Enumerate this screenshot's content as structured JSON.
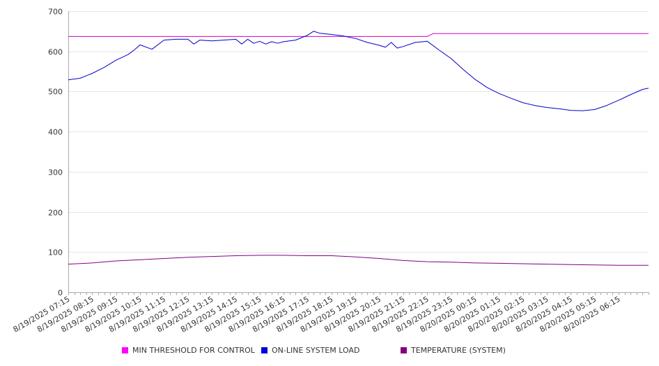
{
  "chart_data": {
    "type": "line",
    "title": "",
    "xlabel": "",
    "ylabel": "",
    "ylim": [
      0,
      700
    ],
    "yticks": [
      0,
      100,
      200,
      300,
      400,
      500,
      600,
      700
    ],
    "grid": true,
    "legend_position": "bottom",
    "x_start": "8/19/2025 07:15",
    "x_end": "8/20/2025 07:30",
    "categories": [
      "8/19/2025 07:15",
      "8/19/2025 08:15",
      "8/19/2025 09:15",
      "8/19/2025 10:15",
      "8/19/2025 11:15",
      "8/19/2025 12:15",
      "8/19/2025 13:15",
      "8/19/2025 14:15",
      "8/19/2025 15:15",
      "8/19/2025 16:15",
      "8/19/2025 17:15",
      "8/19/2025 18:15",
      "8/19/2025 19:15",
      "8/19/2025 20:15",
      "8/19/2025 21:15",
      "8/19/2025 22:15",
      "8/19/2025 23:15",
      "8/20/2025 00:15",
      "8/20/2025 01:15",
      "8/20/2025 02:15",
      "8/20/2025 03:15",
      "8/20/2025 04:15",
      "8/20/2025 05:15",
      "8/20/2025 06:15"
    ],
    "series": [
      {
        "name": "MIN THRESHOLD FOR CONTROL",
        "color": "#cc00cc",
        "x": [
          "8/19/2025 07:15",
          "8/19/2025 22:15",
          "8/19/2025 22:30",
          "8/20/2025 07:30"
        ],
        "values": [
          637,
          637,
          644,
          644
        ]
      },
      {
        "name": "ON-LINE SYSTEM LOAD",
        "color": "#0000cc",
        "x": [
          "8/19/2025 07:15",
          "8/19/2025 07:45",
          "8/19/2025 08:15",
          "8/19/2025 08:45",
          "8/19/2025 09:15",
          "8/19/2025 09:45",
          "8/19/2025 10:00",
          "8/19/2025 10:15",
          "8/19/2025 10:45",
          "8/19/2025 11:15",
          "8/19/2025 11:45",
          "8/19/2025 12:15",
          "8/19/2025 12:30",
          "8/19/2025 12:45",
          "8/19/2025 13:15",
          "8/19/2025 13:45",
          "8/19/2025 14:15",
          "8/19/2025 14:30",
          "8/19/2025 14:45",
          "8/19/2025 15:00",
          "8/19/2025 15:15",
          "8/19/2025 15:30",
          "8/19/2025 15:45",
          "8/19/2025 16:00",
          "8/19/2025 16:15",
          "8/19/2025 16:45",
          "8/19/2025 17:15",
          "8/19/2025 17:30",
          "8/19/2025 17:45",
          "8/19/2025 18:15",
          "8/19/2025 18:45",
          "8/19/2025 19:15",
          "8/19/2025 19:45",
          "8/19/2025 20:15",
          "8/19/2025 20:30",
          "8/19/2025 20:45",
          "8/19/2025 21:00",
          "8/19/2025 21:15",
          "8/19/2025 21:45",
          "8/19/2025 22:15",
          "8/19/2025 22:45",
          "8/19/2025 23:15",
          "8/19/2025 23:45",
          "8/20/2025 00:15",
          "8/20/2025 00:45",
          "8/20/2025 01:15",
          "8/20/2025 01:45",
          "8/20/2025 02:15",
          "8/20/2025 02:45",
          "8/20/2025 03:15",
          "8/20/2025 03:45",
          "8/20/2025 04:15",
          "8/20/2025 04:45",
          "8/20/2025 05:15",
          "8/20/2025 05:45",
          "8/20/2025 06:15",
          "8/20/2025 06:45",
          "8/20/2025 07:15",
          "8/20/2025 07:30"
        ],
        "values": [
          529,
          533,
          545,
          560,
          578,
          592,
          603,
          616,
          605,
          628,
          630,
          630,
          618,
          628,
          626,
          628,
          630,
          618,
          630,
          620,
          625,
          618,
          624,
          620,
          624,
          628,
          640,
          650,
          645,
          642,
          638,
          632,
          622,
          615,
          610,
          622,
          608,
          612,
          622,
          625,
          603,
          582,
          555,
          530,
          510,
          495,
          483,
          472,
          465,
          460,
          457,
          453,
          452,
          455,
          465,
          478,
          492,
          505,
          508
        ]
      },
      {
        "name": "TEMPERATURE (SYSTEM)",
        "color": "#800080",
        "x": [
          "8/19/2025 07:15",
          "8/19/2025 08:15",
          "8/19/2025 09:15",
          "8/19/2025 10:15",
          "8/19/2025 11:15",
          "8/19/2025 12:15",
          "8/19/2025 13:15",
          "8/19/2025 14:15",
          "8/19/2025 15:15",
          "8/19/2025 16:15",
          "8/19/2025 17:15",
          "8/19/2025 18:15",
          "8/19/2025 19:15",
          "8/19/2025 20:15",
          "8/19/2025 21:15",
          "8/19/2025 22:15",
          "8/19/2025 23:15",
          "8/20/2025 00:15",
          "8/20/2025 01:15",
          "8/20/2025 02:15",
          "8/20/2025 03:15",
          "8/20/2025 04:15",
          "8/20/2025 05:15",
          "8/20/2025 06:15",
          "8/20/2025 07:30"
        ],
        "values": [
          70,
          73,
          78,
          81,
          84,
          87,
          89,
          91,
          92,
          92,
          91,
          91,
          88,
          84,
          79,
          76,
          75,
          73,
          72,
          71,
          70,
          69,
          68,
          67,
          67
        ]
      }
    ]
  }
}
